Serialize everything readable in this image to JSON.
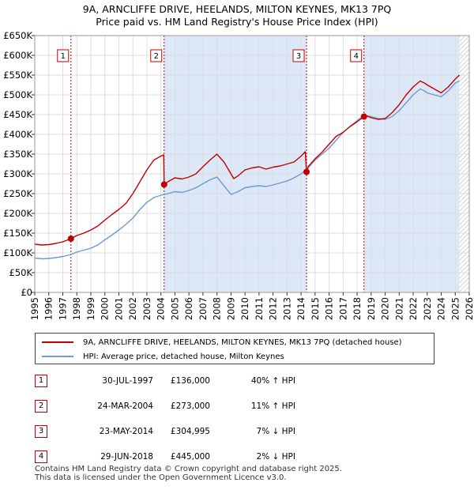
{
  "title_line1": "9A, ARNCLIFFE DRIVE, HEELANDS, MILTON KEYNES, MK13 7PQ",
  "title_line2": "Price paid vs. HM Land Registry's House Price Index (HPI)",
  "chart_data": {
    "type": "line",
    "xlim": [
      1995,
      2026
    ],
    "ylim": [
      0,
      650000
    ],
    "y_ticks": [
      0,
      50000,
      100000,
      150000,
      200000,
      250000,
      300000,
      350000,
      400000,
      450000,
      500000,
      550000,
      600000,
      650000
    ],
    "y_tick_labels": [
      "£0",
      "£50K",
      "£100K",
      "£150K",
      "£200K",
      "£250K",
      "£300K",
      "£350K",
      "£400K",
      "£450K",
      "£500K",
      "£550K",
      "£600K",
      "£650K"
    ],
    "x_ticks": [
      1995,
      1996,
      1997,
      1998,
      1999,
      2000,
      2001,
      2002,
      2003,
      2004,
      2005,
      2006,
      2007,
      2008,
      2009,
      2010,
      2011,
      2012,
      2013,
      2014,
      2015,
      2016,
      2017,
      2018,
      2019,
      2020,
      2021,
      2022,
      2023,
      2024,
      2025,
      2026
    ],
    "colors": {
      "property": "#c00000",
      "hpi": "#6b9bd2",
      "shade": "#dce8f7",
      "grid": "#dddddd",
      "marker": "#c00000"
    },
    "series": [
      {
        "name": "9A, ARNCLIFFE DRIVE, HEELANDS, MILTON KEYNES, MK13 7PQ (detached house)",
        "x": [
          1995.0,
          1995.5,
          1996.0,
          1996.5,
          1997.0,
          1997.58,
          1998.0,
          1998.5,
          1999.0,
          1999.5,
          2000.0,
          2000.5,
          2001.0,
          2001.5,
          2002.0,
          2002.5,
          2003.0,
          2003.5,
          2004.0,
          2004.2,
          2004.23,
          2004.5,
          2005.0,
          2005.5,
          2006.0,
          2006.5,
          2007.0,
          2007.5,
          2008.0,
          2008.5,
          2009.0,
          2009.2,
          2009.5,
          2010.0,
          2010.5,
          2011.0,
          2011.5,
          2012.0,
          2012.5,
          2013.0,
          2013.5,
          2014.0,
          2014.3,
          2014.39,
          2014.5,
          2015.0,
          2015.5,
          2016.0,
          2016.5,
          2017.0,
          2017.5,
          2018.0,
          2018.49,
          2018.6,
          2019.0,
          2019.5,
          2020.0,
          2020.5,
          2021.0,
          2021.5,
          2022.0,
          2022.5,
          2022.8,
          2023.0,
          2023.5,
          2024.0,
          2024.5,
          2025.0,
          2025.3
        ],
        "values": [
          122000,
          120000,
          121000,
          124000,
          128000,
          136000,
          144000,
          150000,
          158000,
          168000,
          183000,
          197000,
          210000,
          225000,
          250000,
          280000,
          310000,
          335000,
          345000,
          348000,
          273000,
          280000,
          290000,
          287000,
          292000,
          300000,
          318000,
          335000,
          350000,
          330000,
          300000,
          288000,
          295000,
          310000,
          315000,
          318000,
          312000,
          317000,
          320000,
          325000,
          330000,
          345000,
          356000,
          304995,
          318000,
          338000,
          355000,
          375000,
          395000,
          405000,
          420000,
          432000,
          445000,
          448000,
          442000,
          438000,
          440000,
          455000,
          475000,
          500000,
          520000,
          535000,
          530000,
          525000,
          515000,
          505000,
          520000,
          540000,
          550000
        ]
      },
      {
        "name": "HPI: Average price, detached house, Milton Keynes",
        "x": [
          1995.0,
          1995.5,
          1996.0,
          1996.5,
          1997.0,
          1997.5,
          1998.0,
          1998.5,
          1999.0,
          1999.5,
          2000.0,
          2000.5,
          2001.0,
          2001.5,
          2002.0,
          2002.5,
          2003.0,
          2003.5,
          2004.0,
          2004.5,
          2005.0,
          2005.5,
          2006.0,
          2006.5,
          2007.0,
          2007.5,
          2008.0,
          2008.5,
          2009.0,
          2009.5,
          2010.0,
          2010.5,
          2011.0,
          2011.5,
          2012.0,
          2012.5,
          2013.0,
          2013.5,
          2014.0,
          2014.5,
          2015.0,
          2015.5,
          2016.0,
          2016.5,
          2017.0,
          2017.5,
          2018.0,
          2018.5,
          2019.0,
          2019.5,
          2020.0,
          2020.5,
          2021.0,
          2021.5,
          2022.0,
          2022.5,
          2022.8,
          2023.0,
          2023.5,
          2024.0,
          2024.5,
          2025.0,
          2025.3
        ],
        "values": [
          87000,
          85000,
          86000,
          88000,
          91000,
          95000,
          102000,
          107000,
          112000,
          120000,
          133000,
          145000,
          158000,
          172000,
          188000,
          210000,
          228000,
          240000,
          246000,
          250000,
          255000,
          253000,
          258000,
          265000,
          275000,
          285000,
          292000,
          270000,
          248000,
          255000,
          265000,
          268000,
          270000,
          268000,
          272000,
          277000,
          282000,
          290000,
          300000,
          315000,
          335000,
          350000,
          365000,
          385000,
          405000,
          420000,
          435000,
          448000,
          445000,
          440000,
          438000,
          445000,
          460000,
          480000,
          500000,
          515000,
          510000,
          505000,
          500000,
          495000,
          510000,
          530000,
          535000
        ]
      }
    ],
    "sales": [
      {
        "label": "1",
        "x": 1997.58,
        "y": 136000
      },
      {
        "label": "2",
        "x": 2004.23,
        "y": 273000
      },
      {
        "label": "3",
        "x": 2014.39,
        "y": 304995
      },
      {
        "label": "4",
        "x": 2018.49,
        "y": 445000
      }
    ],
    "shaded_ranges": [
      [
        2004.23,
        2014.39
      ],
      [
        2018.49,
        2025.3
      ]
    ],
    "hatched_from": 2025.3
  },
  "legend": {
    "property": "9A, ARNCLIFFE DRIVE, HEELANDS, MILTON KEYNES, MK13 7PQ (detached house)",
    "hpi": "HPI: Average price, detached house, Milton Keynes"
  },
  "transactions": [
    {
      "num": "1",
      "date": "30-JUL-1997",
      "price": "£136,000",
      "hpi": "40% ↑ HPI"
    },
    {
      "num": "2",
      "date": "24-MAR-2004",
      "price": "£273,000",
      "hpi": "11% ↑ HPI"
    },
    {
      "num": "3",
      "date": "23-MAY-2014",
      "price": "£304,995",
      "hpi": "7% ↓ HPI"
    },
    {
      "num": "4",
      "date": "29-JUN-2018",
      "price": "£445,000",
      "hpi": "2% ↓ HPI"
    }
  ],
  "footer_line1": "Contains HM Land Registry data © Crown copyright and database right 2025.",
  "footer_line2": "This data is licensed under the Open Government Licence v3.0."
}
